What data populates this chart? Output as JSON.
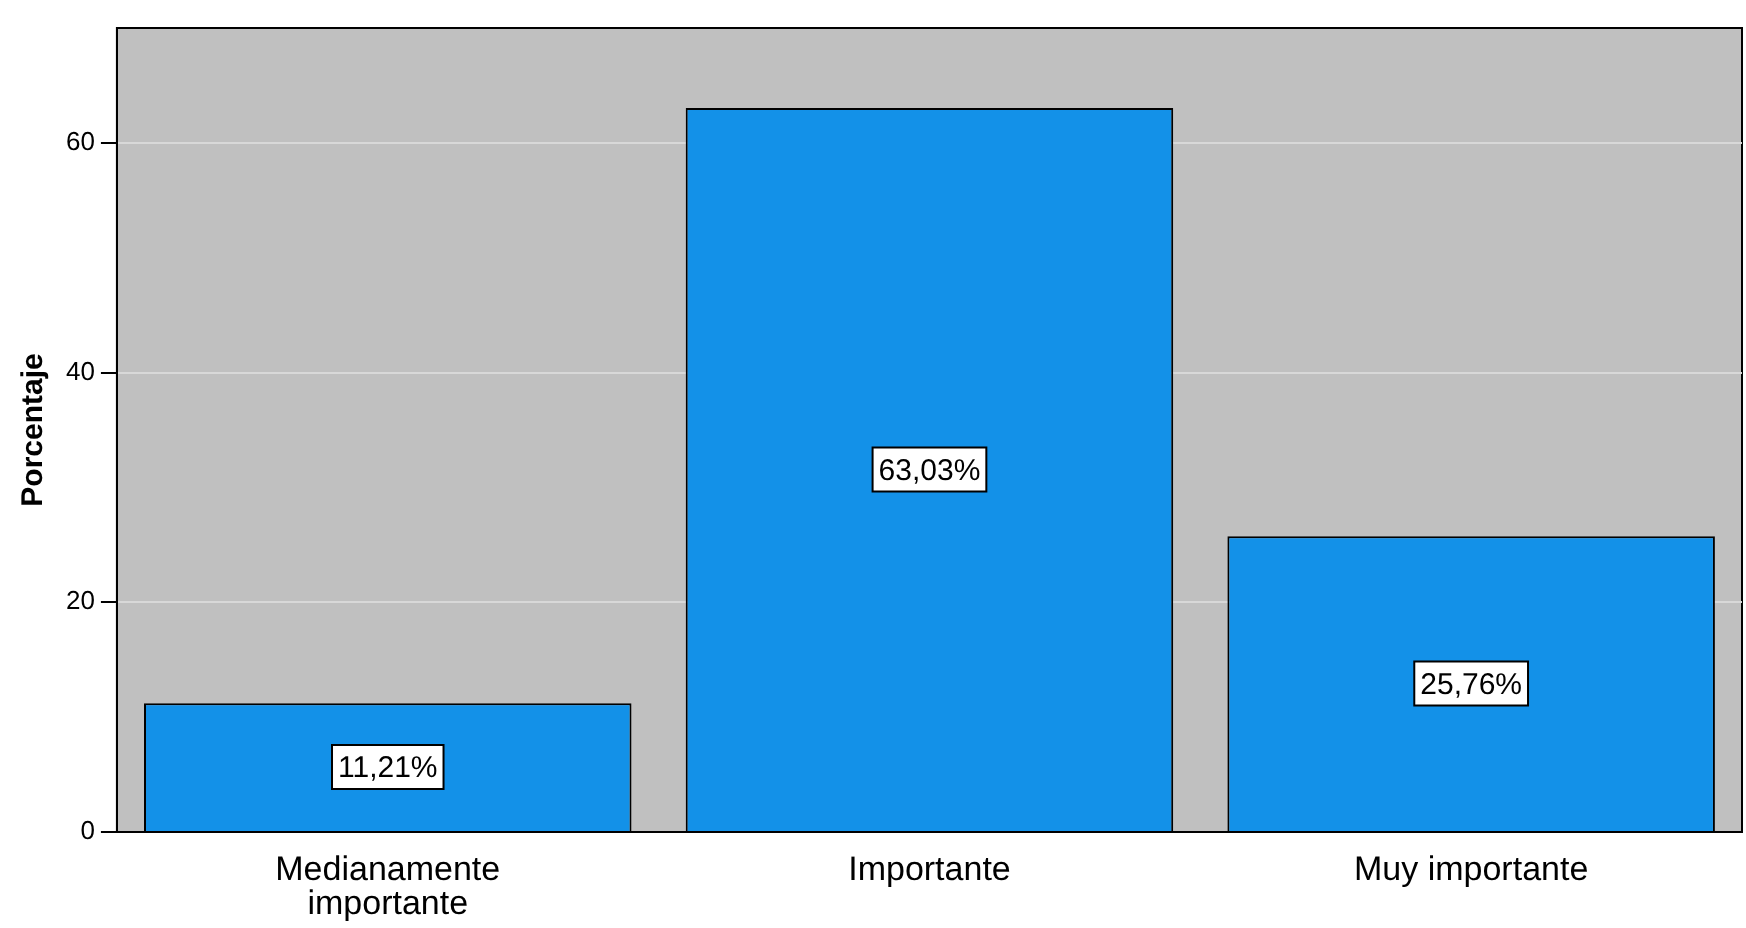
{
  "chart_data": {
    "type": "bar",
    "ylabel": "Porcentaje",
    "categories": [
      "Medianamente importante",
      "Importante",
      "Muy importante"
    ],
    "values": [
      11.21,
      63.03,
      25.76
    ],
    "value_labels": [
      "11,21%",
      "63,03%",
      "25,76%"
    ],
    "color": "#1391e8",
    "ylim": [
      0,
      70
    ],
    "yticks": [
      0,
      20,
      40,
      60
    ],
    "grid": "y",
    "legend": false
  }
}
